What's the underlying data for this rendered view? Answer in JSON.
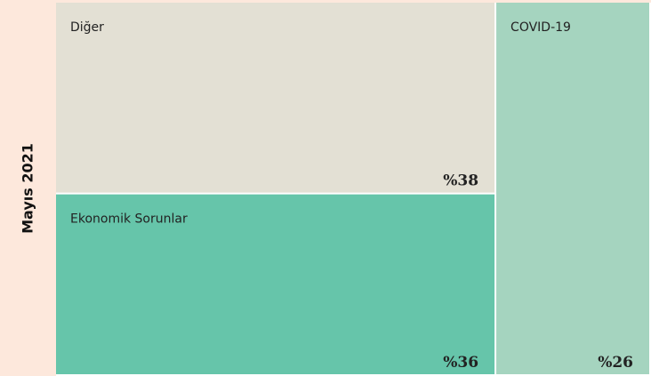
{
  "chart_data": {
    "type": "treemap",
    "ylabel": "Mayıs 2021",
    "categories": [
      "Diğer",
      "Ekonomik Sorunlar",
      "COVID-19"
    ],
    "values": [
      38,
      36,
      26
    ],
    "value_labels": [
      "%38",
      "%36",
      "%26"
    ],
    "colors": [
      "#e3e0d4",
      "#66c5aa",
      "#a5d4bf"
    ]
  }
}
